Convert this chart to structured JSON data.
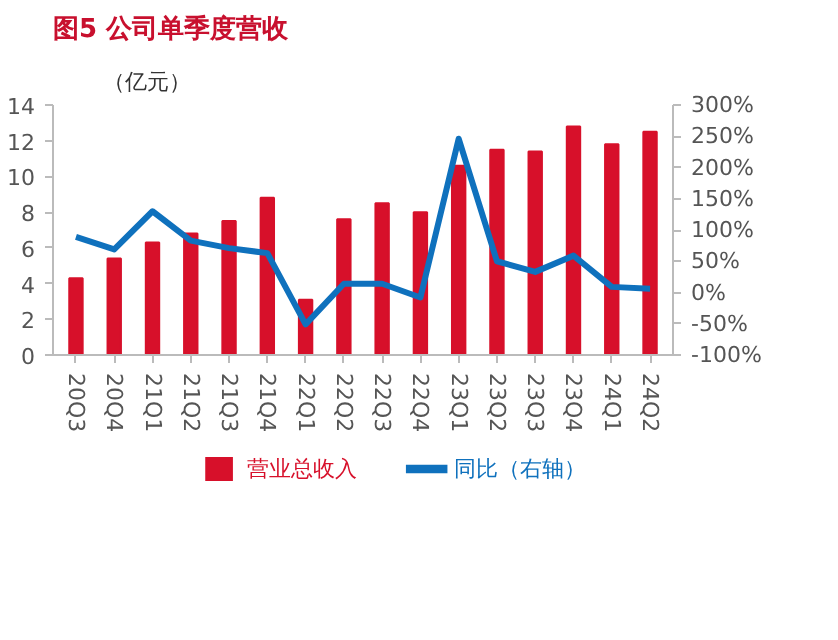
{
  "chart_data": {
    "type": "bar",
    "title": "图5  公司单季度营收",
    "ylabel": "（亿元）",
    "categories": [
      "20Q3",
      "20Q4",
      "21Q1",
      "21Q2",
      "21Q3",
      "21Q4",
      "22Q1",
      "22Q2",
      "22Q3",
      "22Q4",
      "23Q1",
      "23Q2",
      "23Q3",
      "23Q4",
      "24Q1",
      "24Q2"
    ],
    "series": [
      {
        "name": "营业总收入",
        "color": "#d7102a",
        "values": [
          4.3,
          5.4,
          6.3,
          6.8,
          7.5,
          8.8,
          3.1,
          7.6,
          8.5,
          8.0,
          10.6,
          11.5,
          11.4,
          12.8,
          11.8,
          12.5
        ]
      },
      {
        "name": "同比（右轴）",
        "type": "line",
        "axis": "y2",
        "color": "#0f71bd",
        "values": [
          89,
          69,
          130,
          83,
          71,
          63,
          -51,
          14,
          14,
          -8,
          246,
          50,
          33,
          59,
          9,
          6
        ]
      }
    ],
    "ylim": [
      0,
      14
    ],
    "yticks": [
      0,
      2,
      4,
      6,
      8,
      10,
      12,
      14
    ],
    "y2lim": [
      -100,
      300
    ],
    "y2ticks": [
      {
        "value": -100,
        "label": "-100%"
      },
      {
        "value": -50,
        "label": "-50%"
      },
      {
        "value": 0,
        "label": "0%"
      },
      {
        "value": 50,
        "label": "50%"
      },
      {
        "value": 100,
        "label": "100%"
      },
      {
        "value": 150,
        "label": "150%"
      },
      {
        "value": 200,
        "label": "200%"
      },
      {
        "value": 250,
        "label": "250%"
      },
      {
        "value": 300,
        "label": "300%"
      }
    ],
    "grid": false,
    "legend": "bottom"
  }
}
